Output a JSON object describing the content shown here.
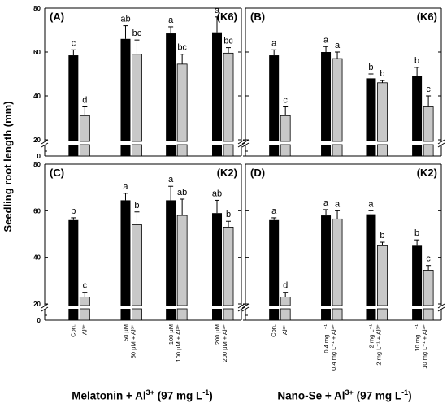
{
  "figure": {
    "y_axis_title": "Seedling root length (mm)",
    "x_axis_titles": [
      {
        "main": "Melatonin + Al",
        "sup": "3+",
        "tail": " (97 mg L",
        "tail_sup": "-1",
        "end": ")"
      },
      {
        "main": "Nano-Se + Al",
        "sup": "3+",
        "tail": " (97 mg L",
        "tail_sup": "-1",
        "end": ")"
      }
    ],
    "colors": {
      "control_bar": "#000000",
      "al_bar": "#c8c8c8"
    }
  },
  "chart_data": [
    {
      "type": "bar",
      "panel": "(A)",
      "cultivar": "(K6)",
      "ylim": [
        0,
        80
      ],
      "yticks": [
        0,
        20,
        40,
        60,
        80
      ],
      "axis_break": [
        20,
        20
      ],
      "values": [
        58.5,
        31,
        66,
        59,
        68.5,
        54.5,
        69,
        59.5
      ],
      "errors": [
        2.5,
        4,
        6,
        6.5,
        3,
        4.5,
        7,
        2.5
      ],
      "letters": [
        "c",
        "d",
        "ab",
        "bc",
        "a",
        "bc",
        "a",
        "bc"
      ]
    },
    {
      "type": "bar",
      "panel": "(B)",
      "cultivar": "(K6)",
      "ylim": [
        0,
        80
      ],
      "yticks": [
        0,
        20,
        40,
        60,
        80
      ],
      "axis_break": [
        20,
        20
      ],
      "values": [
        58.5,
        31,
        60,
        57,
        48,
        46,
        49,
        35
      ],
      "errors": [
        2.5,
        4,
        2.5,
        3,
        2,
        1,
        4,
        5
      ],
      "letters": [
        "a",
        "c",
        "a",
        "a",
        "b",
        "b",
        "b",
        "c"
      ]
    },
    {
      "type": "bar",
      "panel": "(C)",
      "cultivar": "(K2)",
      "ylim": [
        0,
        80
      ],
      "yticks": [
        0,
        20,
        40,
        60,
        80
      ],
      "axis_break": [
        20,
        20
      ],
      "values": [
        56,
        23,
        64.5,
        54,
        64.5,
        58,
        59,
        53
      ],
      "errors": [
        1,
        2,
        3,
        5.5,
        6,
        7,
        5.5,
        2.5
      ],
      "letters": [
        "b",
        "c",
        "a",
        "b",
        "a",
        "ab",
        "ab",
        "b"
      ]
    },
    {
      "type": "bar",
      "panel": "(D)",
      "cultivar": "(K2)",
      "ylim": [
        0,
        80
      ],
      "yticks": [
        0,
        20,
        40,
        60,
        80
      ],
      "axis_break": [
        20,
        20
      ],
      "values": [
        56,
        23,
        58,
        56.5,
        58.5,
        45,
        45,
        34.5
      ],
      "errors": [
        1,
        2,
        2.5,
        3.5,
        1.5,
        1.5,
        2.5,
        2
      ],
      "letters": [
        "a",
        "d",
        "a",
        "a",
        "a",
        "b",
        "b",
        "c"
      ]
    }
  ],
  "x_labels": {
    "melatonin": [
      [
        "Con."
      ],
      [
        "Al³⁺"
      ],
      [
        "50 μM",
        "50 μM + Al³⁺"
      ],
      [
        "100 μM",
        "100 μM + Al³⁺"
      ],
      [
        "200 μM",
        "200 μM + Al³⁺"
      ]
    ],
    "nano_se": [
      [
        "Con."
      ],
      [
        "Al³⁺"
      ],
      [
        "0.4 mg L⁻¹",
        "0.4 mg L⁻¹ + Al³⁺"
      ],
      [
        "2 mg L⁻¹",
        "2 mg L⁻¹ + Al³⁺"
      ],
      [
        "10 mg L⁻¹",
        "10 mg L⁻¹ + Al³⁺"
      ]
    ]
  }
}
